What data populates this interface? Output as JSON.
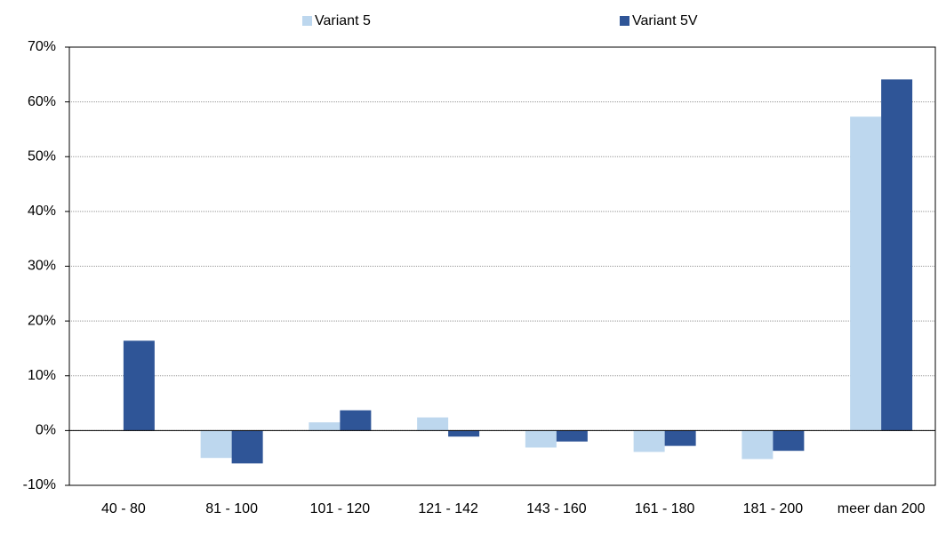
{
  "chart_data": {
    "type": "bar",
    "categories": [
      "40 - 80",
      "81 - 100",
      "101 - 120",
      "121 - 142",
      "143 - 160",
      "161 - 180",
      "181 - 200",
      "meer dan 200"
    ],
    "series": [
      {
        "name": "Variant 5",
        "color": "#bdd7ee",
        "values": [
          0,
          -5.0,
          1.5,
          2.4,
          -3.1,
          -3.9,
          -5.2,
          57.3
        ]
      },
      {
        "name": "Variant 5V",
        "color": "#2f5597",
        "values": [
          16.4,
          -6.0,
          3.7,
          -1.1,
          -2.0,
          -2.8,
          -3.7,
          64.1
        ]
      }
    ],
    "ylim": [
      -10,
      70
    ],
    "yticks": [
      {
        "value": -10,
        "label": "-10%"
      },
      {
        "value": 0,
        "label": "0%"
      },
      {
        "value": 10,
        "label": "10%"
      },
      {
        "value": 20,
        "label": "20%"
      },
      {
        "value": 30,
        "label": "30%"
      },
      {
        "value": 40,
        "label": "40%"
      },
      {
        "value": 50,
        "label": "50%"
      },
      {
        "value": 60,
        "label": "60%"
      },
      {
        "value": 70,
        "label": "70%"
      }
    ],
    "grid": true,
    "legend": "top"
  }
}
